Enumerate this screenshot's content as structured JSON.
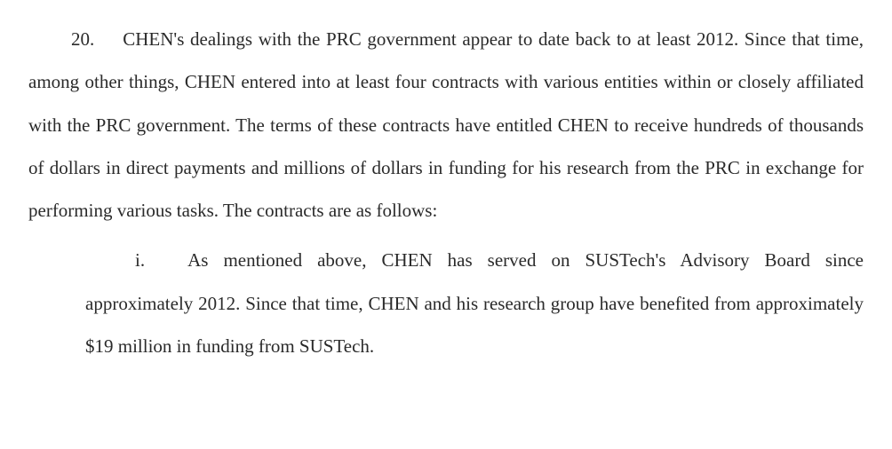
{
  "document": {
    "paragraph": {
      "number": "20.",
      "text": "CHEN's dealings with the PRC government appear to date back to at least 2012. Since that time, among other things, CHEN entered into at least four contracts with various entities within or closely affiliated with the PRC government.  The terms of these contracts have entitled CHEN to receive hundreds of thousands of dollars in direct payments and millions of dollars in funding for his research from the PRC in exchange for performing various tasks.  The contracts are as follows:"
    },
    "subparagraph": {
      "number": "i.",
      "text": "As mentioned above, CHEN has served on SUSTech's Advisory Board since approximately 2012.  Since that time, CHEN and his research group have benefited from approximately $19 million in funding from SUSTech."
    },
    "styling": {
      "font_family": "Times New Roman",
      "font_size_pt": 16,
      "text_color": "#2a2a2a",
      "background_color": "#ffffff",
      "line_height": 2.3,
      "text_align": "justify"
    }
  }
}
